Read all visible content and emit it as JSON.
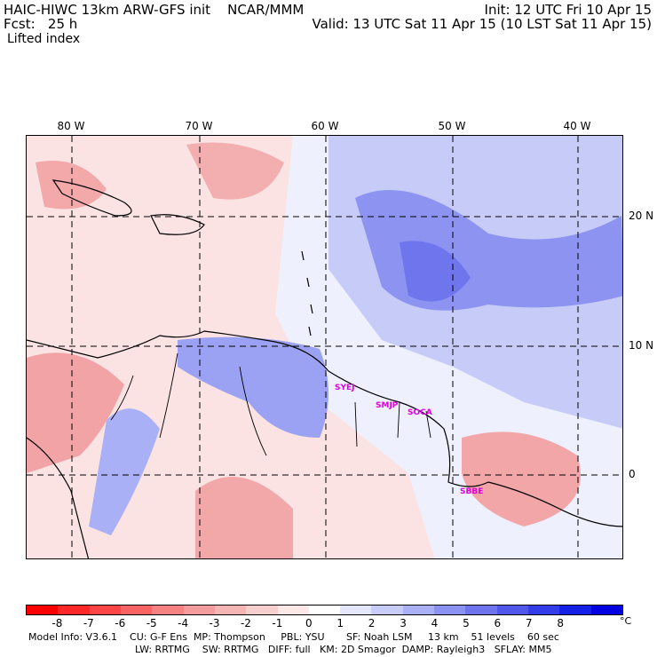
{
  "header": {
    "model_title": "HAIC-HIWC 13km ARW-GFS init    NCAR/MMM",
    "forecast": "Fcst:   25 h",
    "field": "Lifted index",
    "init": "Init: 12 UTC Fri 10 Apr 15",
    "valid": "Valid: 13 UTC Sat 11 Apr 15 (10 LST Sat 11 Apr 15)"
  },
  "map": {
    "longitude_labels": [
      "80 W",
      "70 W",
      "60 W",
      "50 W",
      "40 W"
    ],
    "latitude_labels": [
      "20 N",
      "10 N",
      "0"
    ],
    "stations": [
      "SYEJ",
      "SMJP",
      "SOCA",
      "SBBE"
    ]
  },
  "colorbar": {
    "ticks": [
      "-8",
      "-7",
      "-6",
      "-5",
      "-4",
      "-3",
      "-2",
      "-1",
      "0",
      "1",
      "2",
      "3",
      "4",
      "5",
      "6",
      "7",
      "8"
    ],
    "unit": "°C",
    "colors": [
      "#ff0000",
      "#ff2828",
      "#ff4646",
      "#fb6464",
      "#f78282",
      "#f49c9c",
      "#f6b5b5",
      "#f8cfcf",
      "#fde7e7",
      "#ffffff",
      "#e4e6fc",
      "#c8ccf8",
      "#aab0f6",
      "#8c92f2",
      "#6e74ee",
      "#5058ec",
      "#323ce8",
      "#1420e6",
      "#0000e0"
    ]
  },
  "footer": {
    "line1": "Model Info: V3.6.1    CU: G-F Ens  MP: Thompson     PBL: YSU       SF: Noah LSM     13 km    51 levels    60 sec",
    "line2": "LW: RRTMG    SW: RRTMG   DIFF: full   KM: 2D Smagor  DAMP: Rayleigh3   SFLAY: MM5"
  }
}
